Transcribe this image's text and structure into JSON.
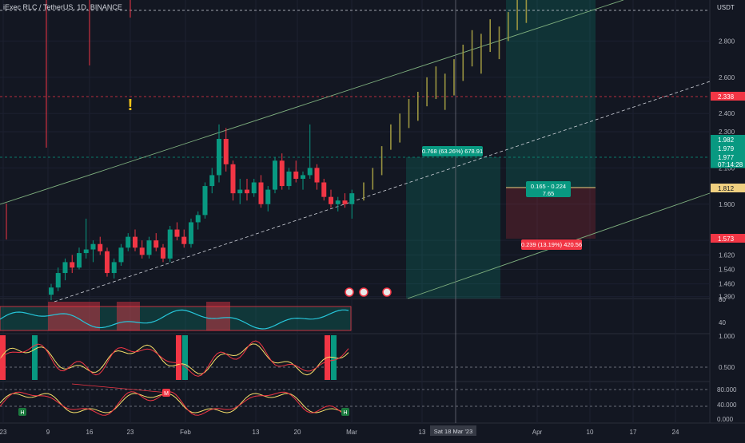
{
  "header": {
    "symbol_line": "iExec RLC / TetherUS, 1D, BINANCE",
    "currency": "USDT"
  },
  "price_axis": {
    "ticks": [
      "2.800",
      "2.600",
      "2.400",
      "2.300",
      "2.100",
      "1.900",
      "1.700",
      "1.620",
      "1.540",
      "1.460",
      "1.390"
    ],
    "labels": [
      {
        "text": "2.338",
        "color": "#f23645"
      },
      {
        "text": "1.982",
        "color": "#089981"
      },
      {
        "text": "1.979",
        "color": "#089981"
      },
      {
        "text": "1.977",
        "color": "#089981"
      },
      {
        "text": "07:14:28",
        "color": "#089981"
      },
      {
        "text": "1.812",
        "color": "#f0d080"
      },
      {
        "text": "1.573",
        "color": "#f23645"
      }
    ]
  },
  "indicator_axes": {
    "rsi": [
      "80",
      "40"
    ],
    "stoch": [
      "1.000",
      "0.500"
    ],
    "mfi": [
      "80.000",
      "40.000",
      "0.000"
    ]
  },
  "time_axis": {
    "ticks": [
      "23",
      "9",
      "16",
      "23",
      "Feb",
      "13",
      "20",
      "Mar",
      "13",
      "Apr",
      "10",
      "17",
      "24"
    ],
    "cursor_label": "Sat 18 Mar '23"
  },
  "positions": {
    "long_label": "0.768 (63.26%) 678.91",
    "short_target_label": "0.165 - 0.224",
    "short_target_sub": "7.65",
    "short_stop_label": "0.239 (13.19%) 420.56"
  },
  "markers": {
    "alert_glyph": "!",
    "m_label": "M",
    "h_label": "H"
  },
  "colors": {
    "bg": "#131722",
    "up": "#089981",
    "down": "#f23645",
    "grid": "#2a2e39",
    "text": "#b2b5be",
    "channel": "#7fb07f",
    "projection": "#9a9440"
  },
  "chart_data": {
    "type": "candlestick",
    "candles": [
      {
        "o": 1.4,
        "h": 1.46,
        "l": 1.37,
        "c": 1.44
      },
      {
        "o": 1.44,
        "h": 1.55,
        "l": 1.42,
        "c": 1.52
      },
      {
        "o": 1.52,
        "h": 1.6,
        "l": 1.48,
        "c": 1.58
      },
      {
        "o": 1.58,
        "h": 1.62,
        "l": 1.52,
        "c": 1.55
      },
      {
        "o": 1.55,
        "h": 1.66,
        "l": 1.54,
        "c": 1.63
      },
      {
        "o": 1.63,
        "h": 1.82,
        "l": 1.6,
        "c": 1.65
      },
      {
        "o": 1.65,
        "h": 1.7,
        "l": 1.58,
        "c": 1.68
      },
      {
        "o": 1.68,
        "h": 1.72,
        "l": 1.62,
        "c": 1.64
      },
      {
        "o": 1.64,
        "h": 1.66,
        "l": 1.5,
        "c": 1.52
      },
      {
        "o": 1.52,
        "h": 1.6,
        "l": 1.49,
        "c": 1.58
      },
      {
        "o": 1.58,
        "h": 1.68,
        "l": 1.56,
        "c": 1.66
      },
      {
        "o": 1.66,
        "h": 1.74,
        "l": 1.64,
        "c": 1.72
      },
      {
        "o": 1.72,
        "h": 1.76,
        "l": 1.64,
        "c": 1.66
      },
      {
        "o": 1.66,
        "h": 1.7,
        "l": 1.6,
        "c": 1.62
      },
      {
        "o": 1.62,
        "h": 1.72,
        "l": 1.6,
        "c": 1.7
      },
      {
        "o": 1.7,
        "h": 1.74,
        "l": 1.64,
        "c": 1.66
      },
      {
        "o": 1.66,
        "h": 1.68,
        "l": 1.58,
        "c": 1.6
      },
      {
        "o": 1.6,
        "h": 1.78,
        "l": 1.58,
        "c": 1.76
      },
      {
        "o": 1.76,
        "h": 1.8,
        "l": 1.7,
        "c": 1.72
      },
      {
        "o": 1.72,
        "h": 1.76,
        "l": 1.66,
        "c": 1.68
      },
      {
        "o": 1.68,
        "h": 1.82,
        "l": 1.66,
        "c": 1.8
      },
      {
        "o": 1.8,
        "h": 1.86,
        "l": 1.76,
        "c": 1.84
      },
      {
        "o": 1.84,
        "h": 2.02,
        "l": 1.82,
        "c": 2.0
      },
      {
        "o": 2.0,
        "h": 2.1,
        "l": 1.96,
        "c": 2.06
      },
      {
        "o": 2.06,
        "h": 2.34,
        "l": 2.02,
        "c": 2.26
      },
      {
        "o": 2.26,
        "h": 2.32,
        "l": 2.08,
        "c": 2.12
      },
      {
        "o": 2.12,
        "h": 2.14,
        "l": 1.92,
        "c": 1.96
      },
      {
        "o": 1.96,
        "h": 2.04,
        "l": 1.9,
        "c": 1.98
      },
      {
        "o": 1.98,
        "h": 2.04,
        "l": 1.92,
        "c": 1.96
      },
      {
        "o": 1.96,
        "h": 2.04,
        "l": 1.94,
        "c": 2.02
      },
      {
        "o": 2.02,
        "h": 2.06,
        "l": 1.88,
        "c": 1.9
      },
      {
        "o": 1.9,
        "h": 2.0,
        "l": 1.86,
        "c": 1.98
      },
      {
        "o": 1.98,
        "h": 2.16,
        "l": 1.96,
        "c": 2.14
      },
      {
        "o": 2.14,
        "h": 2.18,
        "l": 1.98,
        "c": 2.0
      },
      {
        "o": 2.0,
        "h": 2.1,
        "l": 1.98,
        "c": 2.08
      },
      {
        "o": 2.08,
        "h": 2.14,
        "l": 2.02,
        "c": 2.04
      },
      {
        "o": 2.04,
        "h": 2.08,
        "l": 1.98,
        "c": 2.06
      },
      {
        "o": 2.06,
        "h": 2.34,
        "l": 2.04,
        "c": 2.1
      },
      {
        "o": 2.1,
        "h": 2.12,
        "l": 1.98,
        "c": 2.02
      },
      {
        "o": 2.02,
        "h": 2.04,
        "l": 1.92,
        "c": 1.94
      },
      {
        "o": 1.94,
        "h": 1.98,
        "l": 1.88,
        "c": 1.9
      },
      {
        "o": 1.9,
        "h": 1.94,
        "l": 1.86,
        "c": 1.92
      },
      {
        "o": 1.92,
        "h": 1.96,
        "l": 1.88,
        "c": 1.9
      },
      {
        "o": 1.9,
        "h": 1.98,
        "l": 1.82,
        "c": 1.96
      }
    ],
    "projection_bars": [
      {
        "h": 2.02,
        "l": 1.92
      },
      {
        "h": 2.1,
        "l": 1.98
      },
      {
        "h": 2.22,
        "l": 2.06
      },
      {
        "h": 2.34,
        "l": 2.2
      },
      {
        "h": 2.4,
        "l": 2.24
      },
      {
        "h": 2.48,
        "l": 2.32
      },
      {
        "h": 2.52,
        "l": 2.36
      },
      {
        "h": 2.6,
        "l": 2.44
      },
      {
        "h": 2.66,
        "l": 2.48
      },
      {
        "h": 2.62,
        "l": 2.42
      },
      {
        "h": 2.7,
        "l": 2.5
      },
      {
        "h": 2.78,
        "l": 2.58
      },
      {
        "h": 2.86,
        "l": 2.66
      },
      {
        "h": 2.84,
        "l": 2.62
      },
      {
        "h": 2.92,
        "l": 2.74
      },
      {
        "h": 2.88,
        "l": 2.7
      },
      {
        "h": 2.96,
        "l": 2.8
      },
      {
        "h": 3.05,
        "l": 2.86
      },
      {
        "h": 3.1,
        "l": 2.9
      }
    ]
  }
}
